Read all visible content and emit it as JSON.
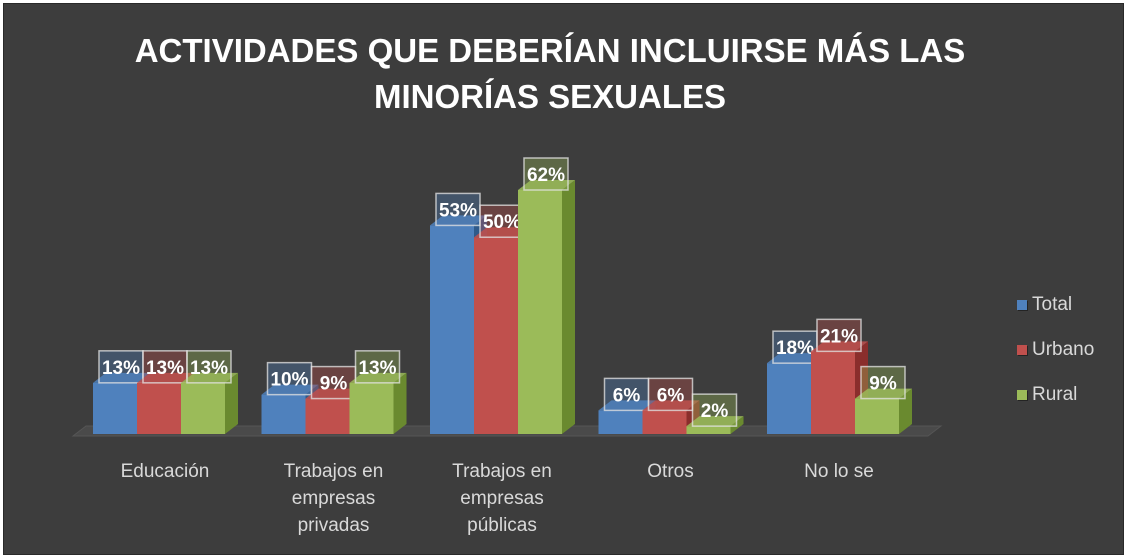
{
  "chart_data": {
    "type": "bar",
    "title_lines": [
      "ACTIVIDADES QUE DEBERÍAN INCLUIRSE MÁS LAS",
      "MINORÍAS SEXUALES"
    ],
    "categories": [
      [
        "Educación"
      ],
      [
        "Trabajos en",
        "empresas",
        "privadas"
      ],
      [
        "Trabajos en",
        "empresas",
        "públicas"
      ],
      [
        "Otros"
      ],
      [
        "No lo se"
      ]
    ],
    "series": [
      {
        "name": "Total",
        "color": "#4f81bd",
        "side": "#2f5a8a",
        "values": [
          13,
          10,
          53,
          6,
          18
        ]
      },
      {
        "name": "Urbano",
        "color": "#c0504d",
        "side": "#8a2e2c",
        "values": [
          13,
          9,
          50,
          6,
          21
        ]
      },
      {
        "name": "Rural",
        "color": "#9bbb59",
        "side": "#6a8a2f",
        "values": [
          13,
          13,
          62,
          2,
          9
        ]
      }
    ],
    "value_suffix": "%",
    "ylim": [
      0,
      62
    ],
    "legend_position": "right",
    "grid": false
  }
}
